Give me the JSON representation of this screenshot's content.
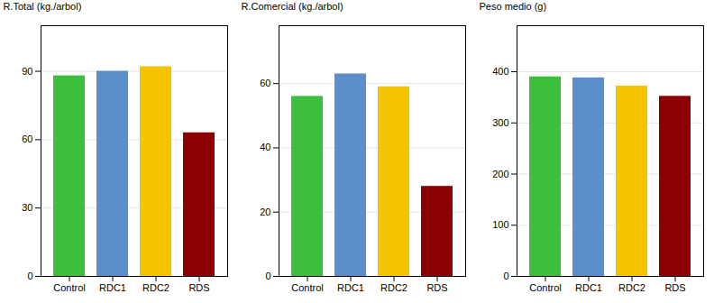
{
  "chart_data": [
    {
      "type": "bar",
      "categories": [
        "Control",
        "RDC1",
        "RDC2",
        "RDS"
      ],
      "values": [
        88,
        90,
        92,
        63
      ],
      "colors": [
        "#3DBF3D",
        "#5B8FCC",
        "#F5C400",
        "#8B0000"
      ],
      "ylabel": "R.Total (kg./arbol)",
      "ylim": [
        0,
        110
      ],
      "yticks": [
        0,
        30,
        60,
        90
      ],
      "grid": true
    },
    {
      "type": "bar",
      "categories": [
        "Control",
        "RDC1",
        "RDC2",
        "RDS"
      ],
      "values": [
        56,
        63,
        59,
        28
      ],
      "colors": [
        "#3DBF3D",
        "#5B8FCC",
        "#F5C400",
        "#8B0000"
      ],
      "ylabel": "R.Comercial (kg./arbol)",
      "ylim": [
        0,
        78
      ],
      "yticks": [
        0,
        20,
        40,
        60
      ],
      "grid": true
    },
    {
      "type": "bar",
      "categories": [
        "Control",
        "RDC1",
        "RDC2",
        "RDS"
      ],
      "values": [
        390,
        388,
        372,
        352
      ],
      "colors": [
        "#3DBF3D",
        "#5B8FCC",
        "#F5C400",
        "#8B0000"
      ],
      "ylabel": "Peso medio (g)",
      "ylim": [
        0,
        490
      ],
      "yticks": [
        0,
        100,
        200,
        300,
        400
      ],
      "grid": true
    }
  ]
}
